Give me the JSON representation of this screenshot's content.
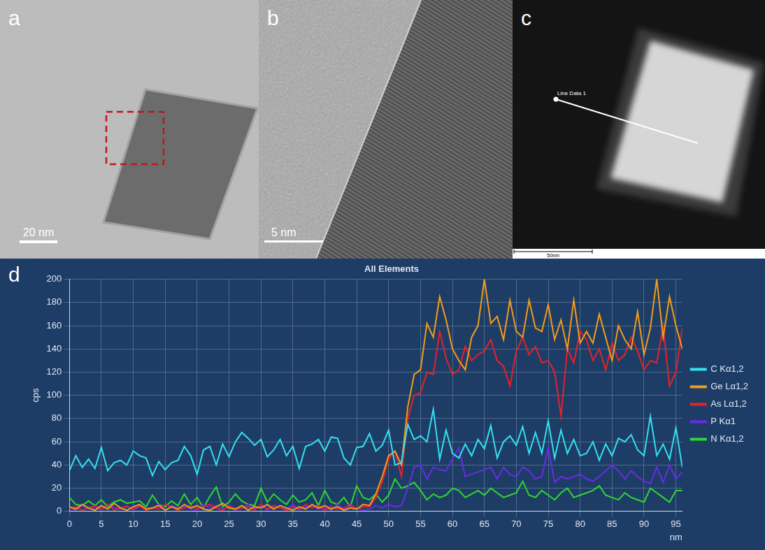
{
  "panels": [
    {
      "letter": "a",
      "scale_bar": "20 nm"
    },
    {
      "letter": "b",
      "scale_bar": "5 nm"
    },
    {
      "letter": "c",
      "annotation": "Line Data 1",
      "scale_bar": "50nm"
    }
  ],
  "chart_data": {
    "letter": "d",
    "type": "line",
    "title": "All Elements",
    "x_label": "nm",
    "y_label": "cps",
    "x": [
      0,
      1,
      2,
      3,
      4,
      5,
      6,
      7,
      8,
      9,
      10,
      11,
      12,
      13,
      14,
      15,
      16,
      17,
      18,
      19,
      20,
      21,
      22,
      23,
      24,
      25,
      26,
      27,
      28,
      29,
      30,
      31,
      32,
      33,
      34,
      35,
      36,
      37,
      38,
      39,
      40,
      41,
      42,
      43,
      44,
      45,
      46,
      47,
      48,
      49,
      50,
      51,
      52,
      53,
      54,
      55,
      56,
      57,
      58,
      59,
      60,
      61,
      62,
      63,
      64,
      65,
      66,
      67,
      68,
      69,
      70,
      71,
      72,
      73,
      74,
      75,
      76,
      77,
      78,
      79,
      80,
      81,
      82,
      83,
      84,
      85,
      86,
      87,
      88,
      89,
      90,
      91,
      92,
      93,
      94,
      95,
      96
    ],
    "series": [
      {
        "name": "C Kα1,2",
        "color": "#33e0f0",
        "values": [
          35,
          48,
          38,
          45,
          37,
          55,
          35,
          42,
          44,
          40,
          52,
          48,
          46,
          31,
          43,
          36,
          42,
          44,
          56,
          48,
          32,
          53,
          56,
          40,
          58,
          47,
          60,
          68,
          63,
          57,
          62,
          47,
          53,
          62,
          48,
          56,
          37,
          56,
          58,
          62,
          52,
          64,
          63,
          46,
          40,
          55,
          56,
          67,
          52,
          57,
          70,
          40,
          42,
          75,
          62,
          65,
          60,
          88,
          45,
          70,
          50,
          46,
          58,
          48,
          62,
          54,
          74,
          46,
          60,
          65,
          57,
          73,
          50,
          68,
          50,
          78,
          46,
          70,
          50,
          62,
          48,
          50,
          60,
          44,
          58,
          48,
          63,
          60,
          66,
          53,
          48,
          82,
          48,
          58,
          45,
          72,
          38
        ]
      },
      {
        "name": "Ge Lα1,2",
        "color": "#f39c1a",
        "values": [
          4,
          2,
          6,
          3,
          1,
          5,
          2,
          7,
          3,
          1,
          4,
          6,
          2,
          3,
          5,
          1,
          4,
          2,
          6,
          3,
          5,
          2,
          1,
          4,
          7,
          3,
          2,
          5,
          1,
          4,
          3,
          6,
          2,
          5,
          3,
          1,
          4,
          2,
          6,
          3,
          5,
          2,
          4,
          1,
          3,
          2,
          6,
          5,
          15,
          30,
          48,
          52,
          40,
          90,
          118,
          122,
          162,
          150,
          185,
          165,
          140,
          130,
          122,
          150,
          160,
          200,
          162,
          168,
          148,
          182,
          155,
          150,
          182,
          158,
          155,
          178,
          148,
          165,
          140,
          182,
          145,
          155,
          145,
          170,
          150,
          130,
          160,
          148,
          140,
          172,
          135,
          158,
          200,
          150,
          185,
          160,
          140
        ]
      },
      {
        "name": "As Lα1,2",
        "color": "#e8202a",
        "values": [
          2,
          4,
          1,
          3,
          5,
          2,
          6,
          1,
          3,
          4,
          2,
          5,
          1,
          3,
          2,
          6,
          4,
          1,
          3,
          5,
          2,
          4,
          6,
          3,
          1,
          5,
          2,
          3,
          4,
          1,
          6,
          2,
          5,
          3,
          1,
          4,
          2,
          6,
          3,
          5,
          1,
          4,
          2,
          3,
          6,
          2,
          4,
          4,
          12,
          25,
          45,
          52,
          30,
          80,
          100,
          102,
          120,
          118,
          155,
          132,
          118,
          122,
          142,
          130,
          135,
          138,
          148,
          130,
          125,
          108,
          138,
          150,
          135,
          142,
          128,
          130,
          120,
          82,
          140,
          128,
          155,
          148,
          130,
          140,
          122,
          145,
          130,
          135,
          150,
          138,
          122,
          130,
          128,
          160,
          108,
          120,
          158
        ]
      },
      {
        "name": "P Kα1",
        "color": "#6a2ae8",
        "values": [
          3,
          1,
          5,
          2,
          4,
          1,
          6,
          3,
          2,
          5,
          1,
          4,
          3,
          2,
          6,
          1,
          5,
          3,
          4,
          2,
          1,
          6,
          3,
          5,
          2,
          4,
          1,
          3,
          6,
          2,
          5,
          1,
          4,
          3,
          2,
          6,
          1,
          4,
          5,
          2,
          3,
          1,
          6,
          2,
          4,
          3,
          1,
          2,
          5,
          3,
          6,
          4,
          5,
          20,
          38,
          40,
          28,
          38,
          36,
          35,
          45,
          55,
          30,
          32,
          34,
          36,
          38,
          28,
          38,
          32,
          30,
          38,
          35,
          28,
          30,
          55,
          25,
          30,
          28,
          30,
          32,
          28,
          26,
          30,
          35,
          40,
          35,
          28,
          35,
          30,
          26,
          24,
          38,
          25,
          40,
          28,
          34
        ]
      },
      {
        "name": "N Kα1,2",
        "color": "#2ed82e",
        "values": [
          12,
          6,
          5,
          9,
          5,
          10,
          4,
          8,
          10,
          7,
          8,
          9,
          4,
          14,
          6,
          4,
          9,
          5,
          15,
          6,
          12,
          3,
          13,
          21,
          4,
          8,
          15,
          9,
          6,
          5,
          20,
          8,
          15,
          10,
          6,
          14,
          8,
          10,
          16,
          5,
          18,
          8,
          6,
          12,
          4,
          22,
          12,
          10,
          15,
          8,
          14,
          28,
          20,
          22,
          25,
          18,
          10,
          15,
          12,
          14,
          20,
          18,
          12,
          15,
          18,
          14,
          20,
          16,
          12,
          14,
          16,
          26,
          14,
          12,
          18,
          14,
          10,
          16,
          20,
          12,
          14,
          16,
          18,
          22,
          14,
          12,
          10,
          16,
          12,
          10,
          8,
          20,
          16,
          12,
          8,
          18,
          18
        ]
      }
    ],
    "xlim": [
      0,
      96
    ],
    "xticks": [
      0,
      5,
      10,
      15,
      20,
      25,
      30,
      35,
      40,
      45,
      50,
      55,
      60,
      65,
      70,
      75,
      80,
      85,
      90,
      95
    ],
    "ylim": [
      0,
      200
    ],
    "yticks": [
      0,
      20,
      40,
      60,
      80,
      100,
      120,
      140,
      160,
      180,
      200
    ],
    "grid": true,
    "legend": "right"
  }
}
